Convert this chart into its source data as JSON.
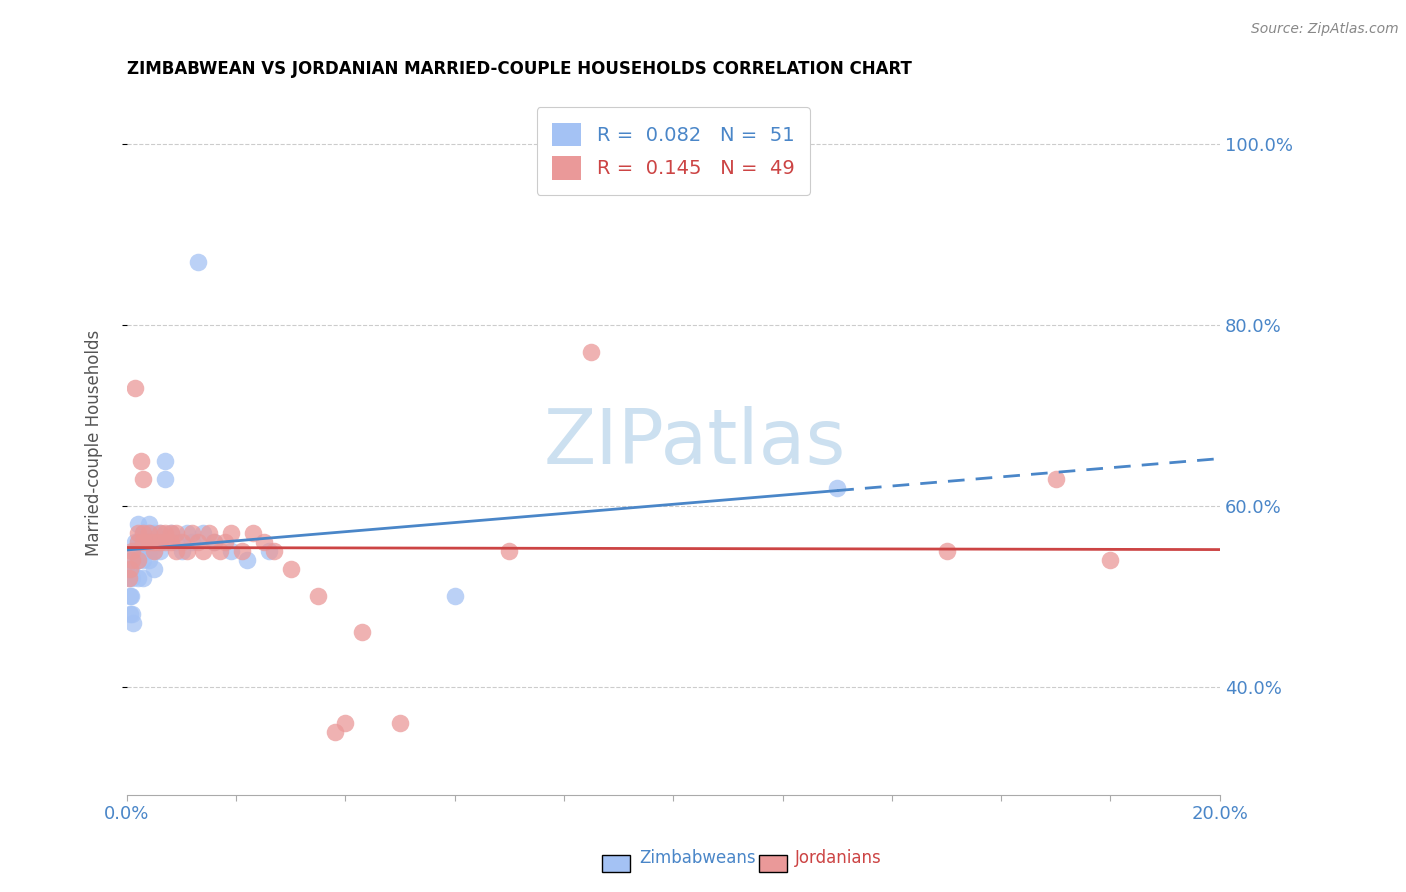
{
  "title": "ZIMBABWEAN VS JORDANIAN MARRIED-COUPLE HOUSEHOLDS CORRELATION CHART",
  "source": "Source: ZipAtlas.com",
  "ylabel": "Married-couple Households",
  "zim_R": 0.082,
  "zim_N": 51,
  "jor_R": 0.145,
  "jor_N": 49,
  "zim_color": "#a4c2f4",
  "jor_color": "#ea9999",
  "zim_line_color": "#4a86c8",
  "jor_line_color": "#cc4444",
  "background_color": "#ffffff",
  "watermark_color": "#cce0f0",
  "grid_color": "#cccccc",
  "ytick_color": "#4a86c8",
  "xtick_color": "#4a86c8",
  "ylabel_color": "#555555",
  "xlim": [
    0.0,
    0.2
  ],
  "ylim": [
    0.28,
    1.06
  ],
  "ytick_vals": [
    0.4,
    0.6,
    0.8,
    1.0
  ],
  "ytick_labels": [
    "40.0%",
    "60.0%",
    "80.0%",
    "100.0%"
  ],
  "zim_x": [
    0.0003,
    0.0004,
    0.0005,
    0.0006,
    0.0007,
    0.0008,
    0.001,
    0.001,
    0.001,
    0.0012,
    0.0015,
    0.0015,
    0.002,
    0.002,
    0.002,
    0.002,
    0.0025,
    0.003,
    0.003,
    0.003,
    0.003,
    0.003,
    0.0035,
    0.004,
    0.004,
    0.004,
    0.004,
    0.004,
    0.0045,
    0.005,
    0.005,
    0.005,
    0.005,
    0.006,
    0.006,
    0.006,
    0.007,
    0.007,
    0.008,
    0.009,
    0.01,
    0.011,
    0.012,
    0.013,
    0.014,
    0.016,
    0.019,
    0.022,
    0.026,
    0.06,
    0.13
  ],
  "zim_y": [
    0.53,
    0.52,
    0.5,
    0.48,
    0.5,
    0.53,
    0.54,
    0.52,
    0.48,
    0.47,
    0.56,
    0.55,
    0.58,
    0.56,
    0.54,
    0.52,
    0.56,
    0.57,
    0.56,
    0.55,
    0.54,
    0.52,
    0.57,
    0.58,
    0.57,
    0.56,
    0.55,
    0.54,
    0.56,
    0.57,
    0.56,
    0.55,
    0.53,
    0.57,
    0.56,
    0.55,
    0.65,
    0.63,
    0.57,
    0.56,
    0.55,
    0.57,
    0.56,
    0.87,
    0.57,
    0.56,
    0.55,
    0.54,
    0.55,
    0.5,
    0.62
  ],
  "jor_x": [
    0.0004,
    0.0005,
    0.001,
    0.001,
    0.0015,
    0.002,
    0.002,
    0.002,
    0.0025,
    0.003,
    0.003,
    0.003,
    0.004,
    0.004,
    0.005,
    0.005,
    0.006,
    0.006,
    0.007,
    0.007,
    0.008,
    0.008,
    0.009,
    0.009,
    0.01,
    0.011,
    0.012,
    0.013,
    0.014,
    0.015,
    0.016,
    0.017,
    0.018,
    0.019,
    0.021,
    0.023,
    0.025,
    0.027,
    0.03,
    0.035,
    0.038,
    0.04,
    0.043,
    0.05,
    0.07,
    0.085,
    0.15,
    0.17,
    0.18
  ],
  "jor_y": [
    0.52,
    0.53,
    0.55,
    0.54,
    0.73,
    0.57,
    0.56,
    0.54,
    0.65,
    0.63,
    0.57,
    0.56,
    0.57,
    0.56,
    0.56,
    0.55,
    0.57,
    0.56,
    0.57,
    0.56,
    0.57,
    0.56,
    0.55,
    0.57,
    0.56,
    0.55,
    0.57,
    0.56,
    0.55,
    0.57,
    0.56,
    0.55,
    0.56,
    0.57,
    0.55,
    0.57,
    0.56,
    0.55,
    0.53,
    0.5,
    0.35,
    0.36,
    0.46,
    0.36,
    0.55,
    0.77,
    0.55,
    0.63,
    0.54
  ]
}
